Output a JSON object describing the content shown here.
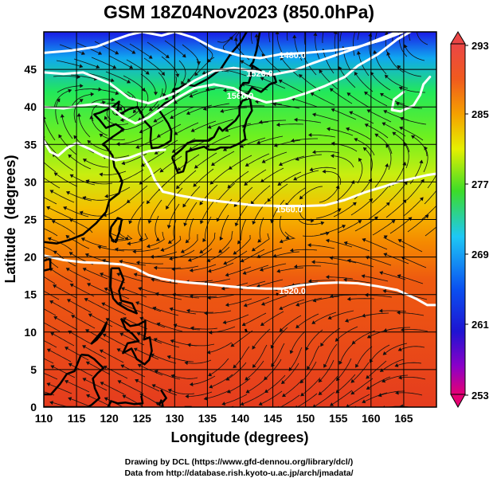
{
  "title": "GSM 18Z04Nov2023 (850.0hPa)",
  "chart_data": {
    "type": "map",
    "xlabel": "Longitude (degrees)",
    "ylabel": "Latitude  (degrees)",
    "xlim": [
      110,
      170
    ],
    "ylim": [
      0,
      50
    ],
    "xticks": [
      110,
      115,
      120,
      125,
      130,
      135,
      140,
      145,
      150,
      155,
      160,
      165
    ],
    "yticks": [
      0,
      5,
      10,
      15,
      20,
      25,
      30,
      35,
      40,
      45
    ],
    "grid": "on",
    "colorbar": {
      "min": 253,
      "max": 293,
      "tick_labels": [
        "293",
        "285",
        "277",
        "269",
        "261",
        "253"
      ],
      "colors": [
        "#e60073",
        "#6a00c8",
        "#0d1ef2",
        "#1ec8f5",
        "#2bdc3a",
        "#8cf000",
        "#f5c800",
        "#f57800",
        "#e63c14",
        "#eb4646"
      ]
    },
    "contours": [
      {
        "label": "1480.0"
      },
      {
        "label": "1520.0"
      },
      {
        "label": "1560.0"
      },
      {
        "label": "1560.0"
      },
      {
        "label": "1520.0"
      }
    ]
  },
  "credits": {
    "line1": "Drawing by DCL (https://www.gfd-dennou.org/library/dcl/)",
    "line2": "Data from http://database.rish.kyoto-u.ac.jp/arch/jmadata/"
  }
}
